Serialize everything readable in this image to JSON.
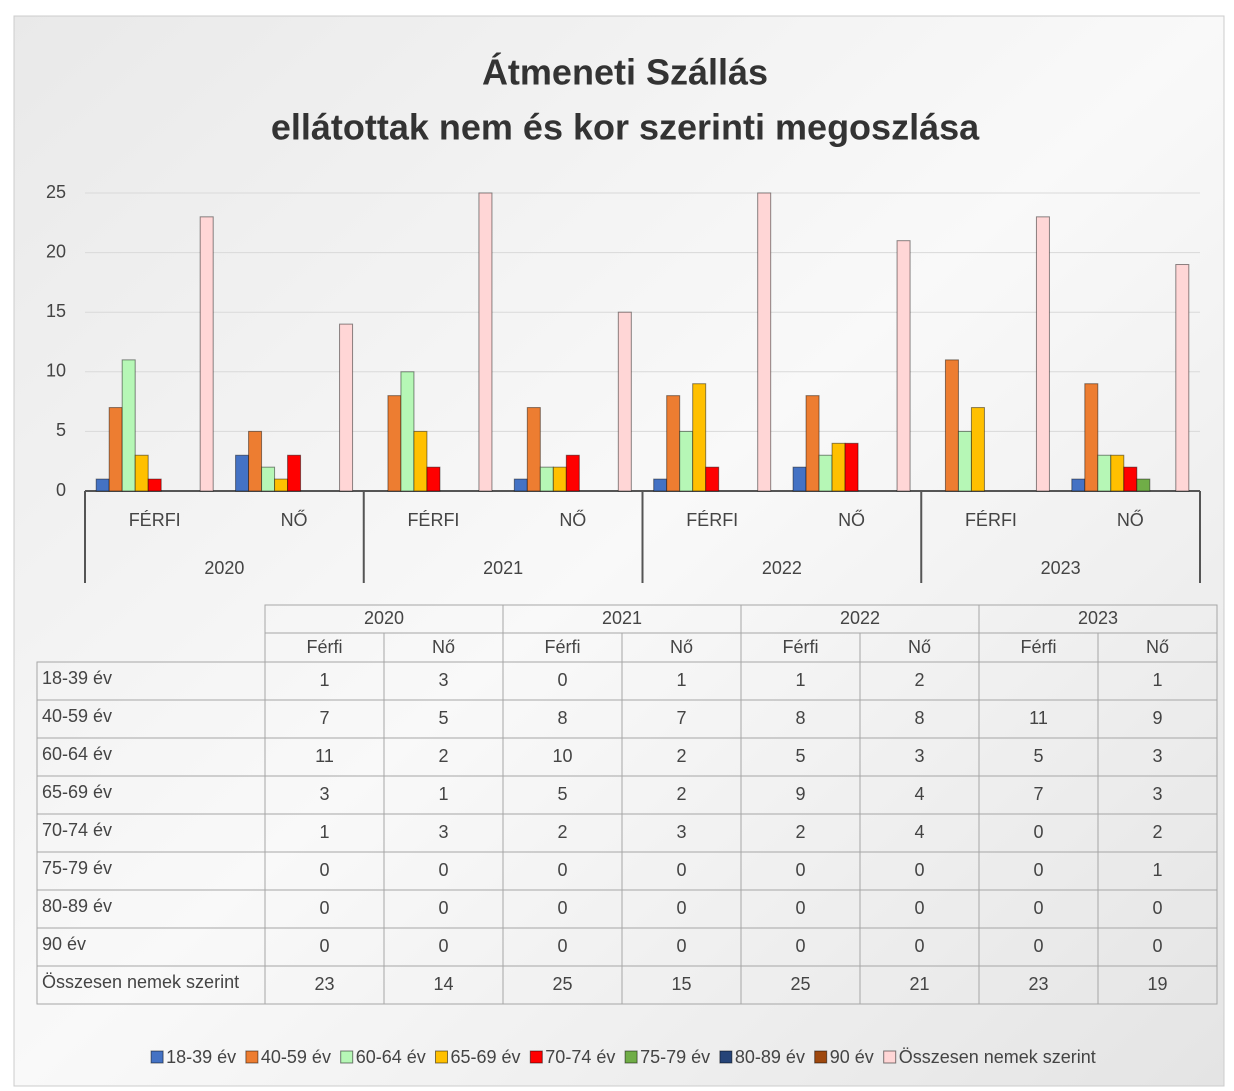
{
  "chart_data": {
    "type": "bar",
    "title": [
      "Átmeneti Szállás",
      "ellátottak nem és kor szerinti megoszlása"
    ],
    "categories": [
      "FÉRFI",
      "NŐ",
      "FÉRFI",
      "NŐ",
      "FÉRFI",
      "NŐ",
      "FÉRFI",
      "NŐ"
    ],
    "groups": [
      "2020",
      "2021",
      "2022",
      "2023"
    ],
    "table_columns": [
      "Férfi",
      "Nő",
      "Férfi",
      "Nő",
      "Férfi",
      "Nő",
      "Férfi",
      "Nő"
    ],
    "ylim": [
      0,
      25
    ],
    "yticks": [
      0,
      5,
      10,
      15,
      20,
      25
    ],
    "grid": true,
    "legend": "bottom",
    "series": [
      {
        "name": "18-39 év",
        "color": "#4472c4",
        "values": [
          1,
          3,
          0,
          1,
          1,
          2,
          null,
          1
        ]
      },
      {
        "name": "40-59 év",
        "color": "#ed7d31",
        "values": [
          7,
          5,
          8,
          7,
          8,
          8,
          11,
          9
        ]
      },
      {
        "name": "60-64 év",
        "color": "#b6f7b6",
        "values": [
          11,
          2,
          10,
          2,
          5,
          3,
          5,
          3
        ]
      },
      {
        "name": "65-69 év",
        "color": "#ffc000",
        "values": [
          3,
          1,
          5,
          2,
          9,
          4,
          7,
          3
        ]
      },
      {
        "name": "70-74 év",
        "color": "#ff0000",
        "values": [
          1,
          3,
          2,
          3,
          2,
          4,
          0,
          2
        ]
      },
      {
        "name": "75-79 év",
        "color": "#70ad47",
        "values": [
          0,
          0,
          0,
          0,
          0,
          0,
          0,
          1
        ]
      },
      {
        "name": "80-89 év",
        "color": "#264478",
        "values": [
          0,
          0,
          0,
          0,
          0,
          0,
          0,
          0
        ]
      },
      {
        "name": "90 év",
        "color": "#9e480e",
        "values": [
          0,
          0,
          0,
          0,
          0,
          0,
          0,
          0
        ]
      },
      {
        "name": "Összesen nemek szerint",
        "color": "#ffd6d6",
        "values": [
          23,
          14,
          25,
          15,
          25,
          21,
          23,
          19
        ]
      }
    ]
  }
}
